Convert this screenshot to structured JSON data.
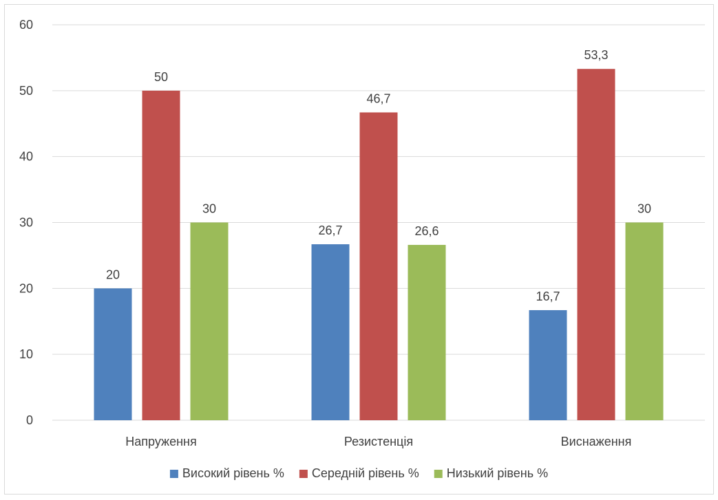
{
  "chart_data": {
    "type": "bar",
    "title": "",
    "xlabel": "",
    "ylabel": "",
    "categories": [
      "Напруження",
      "Резистенція",
      "Виснаження"
    ],
    "series": [
      {
        "name": "Високий рівень %",
        "color": "#4f81bd",
        "values": [
          20,
          26.7,
          16.7
        ],
        "labels": [
          "20",
          "26,7",
          "16,7"
        ]
      },
      {
        "name": "Середній рівень %",
        "color": "#c0504d",
        "values": [
          50,
          46.7,
          53.3
        ],
        "labels": [
          "50",
          "46,7",
          "53,3"
        ]
      },
      {
        "name": "Низький рівень %",
        "color": "#9bbb59",
        "values": [
          30,
          26.6,
          30
        ],
        "labels": [
          "30",
          "26,6",
          "30"
        ]
      }
    ],
    "ylim": [
      0,
      60
    ],
    "yticks": [
      0,
      10,
      20,
      30,
      40,
      50,
      60
    ],
    "grid": true,
    "legend": "bottom"
  }
}
